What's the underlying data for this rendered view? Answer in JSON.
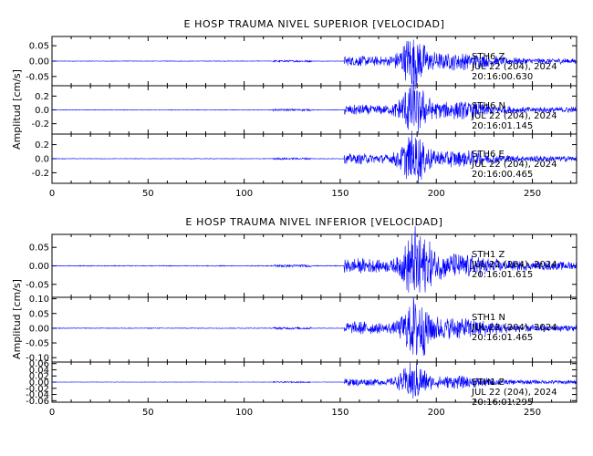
{
  "chart_data": [
    {
      "type": "line",
      "title": "E HOSP TRAUMA NIVEL SUPERIOR [VELOCIDAD]",
      "ylabel": "Amplitud [cm/s]",
      "xlabel": "",
      "xlim": [
        0,
        273
      ],
      "xticks": [
        0,
        50,
        100,
        150,
        200,
        250
      ],
      "grid": false,
      "panels": [
        {
          "station": "STH6",
          "component": "Z",
          "date": "JUL 22 (204), 2024",
          "time": "20:16:00.630",
          "ylim": [
            -0.08,
            0.08
          ],
          "yticks": [
            0.05,
            0.0,
            -0.05
          ],
          "yticklabels": [
            "0.05",
            "0.00",
            "-0.05"
          ],
          "peak_amplitude": 0.07,
          "onset": 152,
          "peak_time": 188
        },
        {
          "station": "STH6",
          "component": "N",
          "date": "JUL 22 (204), 2024",
          "time": "20:16:01.145",
          "ylim": [
            -0.35,
            0.35
          ],
          "yticks": [
            0.2,
            0.0,
            -0.2
          ],
          "yticklabels": [
            "0.2",
            "0.0",
            "-0.2"
          ],
          "peak_amplitude": 0.32,
          "onset": 152,
          "peak_time": 188
        },
        {
          "station": "STH6",
          "component": "E",
          "date": "JUL 22 (204), 2024",
          "time": "20:16:00.465",
          "ylim": [
            -0.35,
            0.35
          ],
          "yticks": [
            0.2,
            0.0,
            -0.2
          ],
          "yticklabels": [
            "0.2",
            "0.0",
            "-0.2"
          ],
          "peak_amplitude": 0.3,
          "onset": 152,
          "peak_time": 188
        }
      ]
    },
    {
      "type": "line",
      "title": "E HOSP TRAUMA NIVEL INFERIOR [VELOCIDAD]",
      "ylabel": "Amplitud [cm/s]",
      "xlabel": "",
      "xlim": [
        0,
        273
      ],
      "xticks": [
        0,
        50,
        100,
        150,
        200,
        250
      ],
      "grid": false,
      "panels": [
        {
          "station": "STH1",
          "component": "Z",
          "date": "JUL 22 (204), 2024",
          "time": "20:16:01.615",
          "ylim": [
            -0.085,
            0.085
          ],
          "yticks": [
            0.05,
            0.0,
            -0.05
          ],
          "yticklabels": [
            "0.05",
            "0.00",
            "-0.05"
          ],
          "peak_amplitude": 0.083,
          "onset": 152,
          "peak_time": 190
        },
        {
          "station": "STH1",
          "component": "N",
          "date": "JUL 22 (204), 2024",
          "time": "20:16:01.465",
          "ylim": [
            -0.115,
            0.105
          ],
          "yticks": [
            0.1,
            0.05,
            0.0,
            -0.05,
            -0.1
          ],
          "yticklabels": [
            "0.10",
            "0.05",
            "0.00",
            "-0.05",
            "-0.10"
          ],
          "peak_amplitude": 0.09,
          "onset": 152,
          "peak_time": 190
        },
        {
          "station": "STH1",
          "component": "E",
          "date": "JUL 22 (204), 2024",
          "time": "20:16:01.295",
          "ylim": [
            -0.065,
            0.065
          ],
          "yticks": [
            0.06,
            0.04,
            0.02,
            0.0,
            -0.02,
            -0.04,
            -0.06
          ],
          "yticklabels": [
            "0.06",
            "0.04",
            "0.02",
            "0.00",
            "-0.02",
            "-0.04",
            "-0.06"
          ],
          "peak_amplitude": 0.05,
          "onset": 152,
          "peak_time": 188
        }
      ]
    }
  ]
}
